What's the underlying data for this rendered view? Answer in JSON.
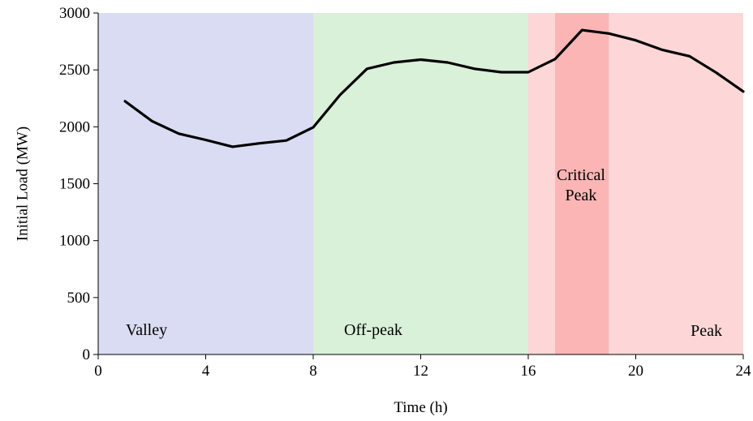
{
  "chart_data": {
    "type": "line",
    "title": "",
    "xlabel": "Time (h)",
    "ylabel": "Initial Load  (MW)",
    "xlim": [
      0,
      24
    ],
    "ylim": [
      0,
      3000
    ],
    "x_ticks": [
      0,
      4,
      8,
      12,
      16,
      20,
      24
    ],
    "y_ticks": [
      0,
      500,
      1000,
      1500,
      2000,
      2500,
      3000
    ],
    "grid": false,
    "legend": "none",
    "series": [
      {
        "color": "#000000",
        "x": [
          1,
          2,
          3,
          4,
          5,
          6,
          7,
          8,
          9,
          10,
          11,
          12,
          13,
          14,
          15,
          16,
          17,
          18,
          19,
          20,
          21,
          22,
          23,
          24
        ],
        "y": [
          2225,
          2050,
          1940,
          1885,
          1825,
          1855,
          1880,
          1995,
          2280,
          2510,
          2565,
          2590,
          2565,
          2510,
          2480,
          2480,
          2595,
          2850,
          2820,
          2760,
          2675,
          2620,
          2475,
          2310
        ]
      }
    ],
    "regions": [
      {
        "label": "Valley",
        "x_start": 0,
        "x_end": 8,
        "color": "#d9dcf2"
      },
      {
        "label": "Off-peak",
        "x_start": 8,
        "x_end": 16,
        "color": "#d9f0d9"
      },
      {
        "label": "Peak",
        "x_start": 16,
        "x_end": 24,
        "color": "#fdd7d7"
      },
      {
        "label_lines": [
          "Critical",
          "Peak"
        ],
        "x_start": 17,
        "x_end": 19,
        "color": "#fbb5b5"
      }
    ]
  }
}
